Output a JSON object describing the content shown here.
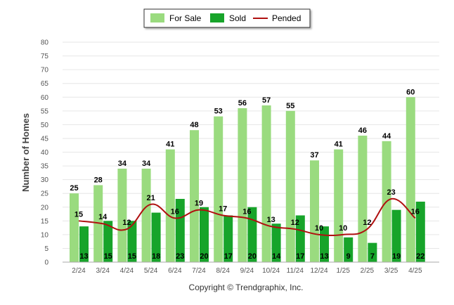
{
  "chart_data": {
    "type": "bar",
    "title": "",
    "xlabel": "",
    "ylabel": "Number of Homes",
    "ylim": [
      0,
      80
    ],
    "yticks": [
      0,
      5,
      10,
      15,
      20,
      25,
      30,
      35,
      40,
      45,
      50,
      55,
      60,
      65,
      70,
      75,
      80
    ],
    "grid": true,
    "legend_position": "top-center",
    "categories": [
      "2/24",
      "3/24",
      "4/24",
      "5/24",
      "6/24",
      "7/24",
      "8/24",
      "9/24",
      "10/24",
      "11/24",
      "12/24",
      "1/25",
      "2/25",
      "3/25",
      "4/25"
    ],
    "series": [
      {
        "name": "For Sale",
        "kind": "bar",
        "color": "#9ADB7F",
        "values": [
          25,
          28,
          34,
          34,
          41,
          48,
          53,
          56,
          57,
          55,
          37,
          41,
          46,
          44,
          60
        ]
      },
      {
        "name": "Sold",
        "kind": "bar",
        "color": "#17A42A",
        "values": [
          13,
          15,
          15,
          18,
          23,
          20,
          17,
          20,
          14,
          17,
          13,
          9,
          7,
          19,
          22
        ]
      },
      {
        "name": "Pended",
        "kind": "line",
        "color": "#B01010",
        "values": [
          15,
          14,
          12,
          21,
          16,
          19,
          17,
          16,
          13,
          12,
          10,
          10,
          12,
          23,
          16
        ]
      }
    ],
    "footer": "Copyright © Trendgraphix, Inc."
  }
}
